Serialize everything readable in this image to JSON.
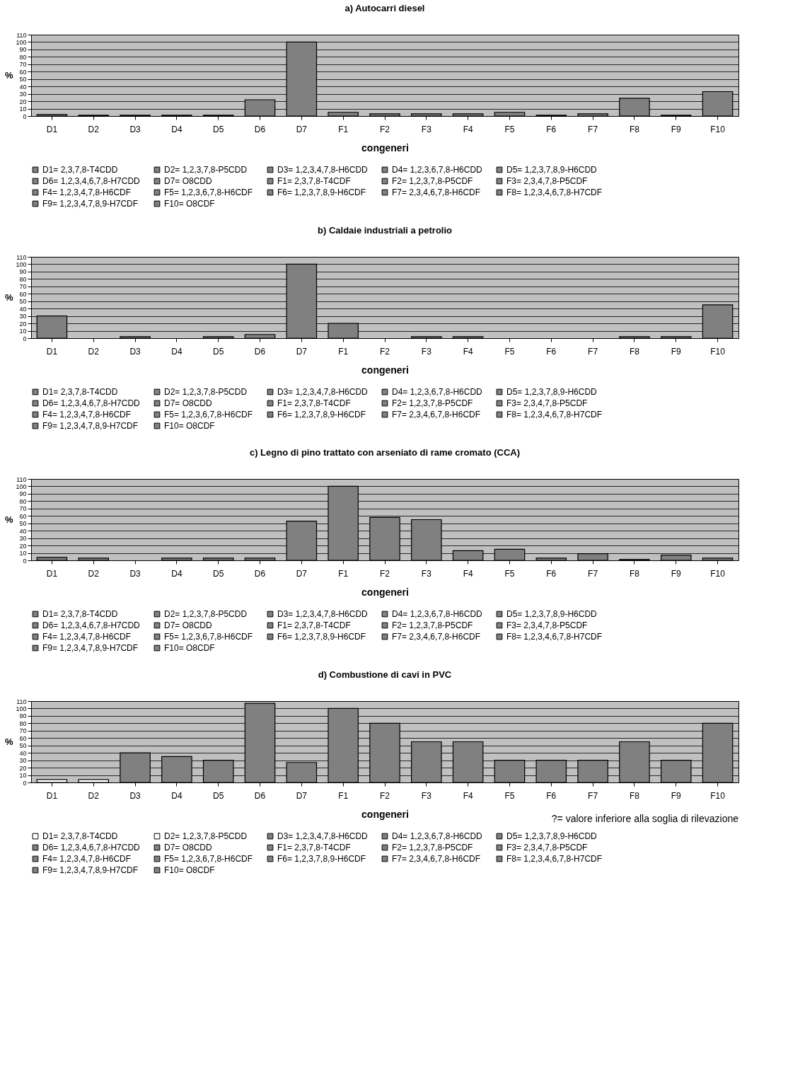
{
  "chart_data": [
    {
      "type": "bar",
      "title": "a) Autocarri diesel",
      "xlabel": "congeneri",
      "ylabel": "%",
      "categories": [
        "D1",
        "D2",
        "D3",
        "D4",
        "D5",
        "D6",
        "D7",
        "F1",
        "F2",
        "F3",
        "F4",
        "F5",
        "F6",
        "F7",
        "F8",
        "F9",
        "F10"
      ],
      "ylim": [
        0,
        110
      ],
      "yticks": [
        0,
        10,
        20,
        30,
        40,
        50,
        60,
        70,
        80,
        90,
        100,
        110
      ],
      "grid": "y",
      "legend": "bottom",
      "series": [
        {
          "name": "D1= 2,3,7,8-T4CDD",
          "color": "#808080",
          "values": [
            2,
            null,
            null,
            null,
            null,
            null,
            null,
            null,
            null,
            null,
            null,
            null,
            null,
            null,
            null,
            null,
            null
          ]
        },
        {
          "name": "D2= 1,2,3,7,8-P5CDD",
          "color": "#808080",
          "values": [
            null,
            1,
            null,
            null,
            null,
            null,
            null,
            null,
            null,
            null,
            null,
            null,
            null,
            null,
            null,
            null,
            null
          ]
        },
        {
          "name": "D3= 1,2,3,4,7,8-H6CDD",
          "color": "#808080",
          "values": [
            null,
            null,
            1,
            null,
            null,
            null,
            null,
            null,
            null,
            null,
            null,
            null,
            null,
            null,
            null,
            null,
            null
          ]
        },
        {
          "name": "D4= 1,2,3,6,7,8-H6CDD",
          "color": "#808080",
          "values": [
            null,
            null,
            null,
            1,
            null,
            null,
            null,
            null,
            null,
            null,
            null,
            null,
            null,
            null,
            null,
            null,
            null
          ]
        },
        {
          "name": "D5= 1,2,3,7,8,9-H6CDD",
          "color": "#808080",
          "values": [
            null,
            null,
            null,
            null,
            1,
            null,
            null,
            null,
            null,
            null,
            null,
            null,
            null,
            null,
            null,
            null,
            null
          ]
        },
        {
          "name": "D6= 1,2,3,4,6,7,8-H7CDD",
          "color": "#808080",
          "values": [
            null,
            null,
            null,
            null,
            null,
            22,
            null,
            null,
            null,
            null,
            null,
            null,
            null,
            null,
            null,
            null,
            null
          ]
        },
        {
          "name": "D7= O8CDD",
          "color": "#808080",
          "values": [
            null,
            null,
            null,
            null,
            null,
            null,
            100,
            null,
            null,
            null,
            null,
            null,
            null,
            null,
            null,
            null,
            null
          ]
        },
        {
          "name": "F1= 2,3,7,8-T4CDF",
          "color": "#808080",
          "values": [
            null,
            null,
            null,
            null,
            null,
            null,
            null,
            5,
            null,
            null,
            null,
            null,
            null,
            null,
            null,
            null,
            null
          ]
        },
        {
          "name": "F2= 1,2,3,7,8-P5CDF",
          "color": "#808080",
          "values": [
            null,
            null,
            null,
            null,
            null,
            null,
            null,
            null,
            3,
            null,
            null,
            null,
            null,
            null,
            null,
            null,
            null
          ]
        },
        {
          "name": "F3= 2,3,4,7,8-P5CDF",
          "color": "#808080",
          "values": [
            null,
            null,
            null,
            null,
            null,
            null,
            null,
            null,
            null,
            3,
            null,
            null,
            null,
            null,
            null,
            null,
            null
          ]
        },
        {
          "name": "F4= 1,2,3,4,7,8-H6CDF",
          "color": "#808080",
          "values": [
            null,
            null,
            null,
            null,
            null,
            null,
            null,
            null,
            null,
            null,
            3,
            null,
            null,
            null,
            null,
            null,
            null
          ]
        },
        {
          "name": "F5= 1,2,3,6,7,8-H6CDF",
          "color": "#808080",
          "values": [
            null,
            null,
            null,
            null,
            null,
            null,
            null,
            null,
            null,
            null,
            null,
            5,
            null,
            null,
            null,
            null,
            null
          ]
        },
        {
          "name": "F6= 1,2,3,7,8,9-H6CDF",
          "color": "#808080",
          "values": [
            null,
            null,
            null,
            null,
            null,
            null,
            null,
            null,
            null,
            null,
            null,
            null,
            1,
            null,
            null,
            null,
            null
          ]
        },
        {
          "name": "F7= 2,3,4,6,7,8-H6CDF",
          "color": "#808080",
          "values": [
            null,
            null,
            null,
            null,
            null,
            null,
            null,
            null,
            null,
            null,
            null,
            null,
            null,
            3,
            null,
            null,
            null
          ]
        },
        {
          "name": "F8= 1,2,3,4,6,7,8-H7CDF",
          "color": "#808080",
          "values": [
            null,
            null,
            null,
            null,
            null,
            null,
            null,
            null,
            null,
            null,
            null,
            null,
            null,
            null,
            24,
            null,
            null
          ]
        },
        {
          "name": "F9= 1,2,3,4,7,8,9-H7CDF",
          "color": "#808080",
          "values": [
            null,
            null,
            null,
            null,
            null,
            null,
            null,
            null,
            null,
            null,
            null,
            null,
            null,
            null,
            null,
            1,
            null
          ]
        },
        {
          "name": "F10= O8CDF",
          "color": "#808080",
          "values": [
            null,
            null,
            null,
            null,
            null,
            null,
            null,
            null,
            null,
            null,
            null,
            null,
            null,
            null,
            null,
            null,
            33
          ]
        }
      ]
    },
    {
      "type": "bar",
      "title": "b) Caldaie industriali a petrolio",
      "xlabel": "congeneri",
      "ylabel": "%",
      "categories": [
        "D1",
        "D2",
        "D3",
        "D4",
        "D5",
        "D6",
        "D7",
        "F1",
        "F2",
        "F3",
        "F4",
        "F5",
        "F6",
        "F7",
        "F8",
        "F9",
        "F10"
      ],
      "ylim": [
        0,
        110
      ],
      "yticks": [
        0,
        10,
        20,
        30,
        40,
        50,
        60,
        70,
        80,
        90,
        100,
        110
      ],
      "grid": "y",
      "legend": "bottom",
      "series": [
        {
          "name": "D1= 2,3,7,8-T4CDD",
          "color": "#808080",
          "values": [
            30,
            null,
            null,
            null,
            null,
            null,
            null,
            null,
            null,
            null,
            null,
            null,
            null,
            null,
            null,
            null,
            null
          ]
        },
        {
          "name": "D2= 1,2,3,7,8-P5CDD",
          "color": "#808080",
          "values": [
            null,
            null,
            null,
            null,
            null,
            null,
            null,
            null,
            null,
            null,
            null,
            null,
            null,
            null,
            null,
            null,
            null
          ]
        },
        {
          "name": "D3= 1,2,3,4,7,8-H6CDD",
          "color": "#808080",
          "values": [
            null,
            null,
            2,
            null,
            null,
            null,
            null,
            null,
            null,
            null,
            null,
            null,
            null,
            null,
            null,
            null,
            null
          ]
        },
        {
          "name": "D4= 1,2,3,6,7,8-H6CDD",
          "color": "#808080",
          "values": [
            null,
            null,
            null,
            null,
            null,
            null,
            null,
            null,
            null,
            null,
            null,
            null,
            null,
            null,
            null,
            null,
            null
          ]
        },
        {
          "name": "D5= 1,2,3,7,8,9-H6CDD",
          "color": "#808080",
          "values": [
            null,
            null,
            null,
            null,
            2,
            null,
            null,
            null,
            null,
            null,
            null,
            null,
            null,
            null,
            null,
            null,
            null
          ]
        },
        {
          "name": "D6= 1,2,3,4,6,7,8-H7CDD",
          "color": "#808080",
          "values": [
            null,
            null,
            null,
            null,
            null,
            5,
            null,
            null,
            null,
            null,
            null,
            null,
            null,
            null,
            null,
            null,
            null
          ]
        },
        {
          "name": "D7= O8CDD",
          "color": "#808080",
          "values": [
            null,
            null,
            null,
            null,
            null,
            null,
            100,
            null,
            null,
            null,
            null,
            null,
            null,
            null,
            null,
            null,
            null
          ]
        },
        {
          "name": "F1= 2,3,7,8-T4CDF",
          "color": "#808080",
          "values": [
            null,
            null,
            null,
            null,
            null,
            null,
            null,
            20,
            null,
            null,
            null,
            null,
            null,
            null,
            null,
            null,
            null
          ]
        },
        {
          "name": "F2= 1,2,3,7,8-P5CDF",
          "color": "#808080",
          "values": [
            null,
            null,
            null,
            null,
            null,
            null,
            null,
            null,
            null,
            null,
            null,
            null,
            null,
            null,
            null,
            null,
            null
          ]
        },
        {
          "name": "F3= 2,3,4,7,8-P5CDF",
          "color": "#808080",
          "values": [
            null,
            null,
            null,
            null,
            null,
            null,
            null,
            null,
            null,
            2,
            null,
            null,
            null,
            null,
            null,
            null,
            null
          ]
        },
        {
          "name": "F4= 1,2,3,4,7,8-H6CDF",
          "color": "#808080",
          "values": [
            null,
            null,
            null,
            null,
            null,
            null,
            null,
            null,
            null,
            null,
            2,
            null,
            null,
            null,
            null,
            null,
            null
          ]
        },
        {
          "name": "F5= 1,2,3,6,7,8-H6CDF",
          "color": "#808080",
          "values": [
            null,
            null,
            null,
            null,
            null,
            null,
            null,
            null,
            null,
            null,
            null,
            null,
            null,
            null,
            null,
            null,
            null
          ]
        },
        {
          "name": "F6= 1,2,3,7,8,9-H6CDF",
          "color": "#808080",
          "values": [
            null,
            null,
            null,
            null,
            null,
            null,
            null,
            null,
            null,
            null,
            null,
            null,
            null,
            null,
            null,
            null,
            null
          ]
        },
        {
          "name": "F7= 2,3,4,6,7,8-H6CDF",
          "color": "#808080",
          "values": [
            null,
            null,
            null,
            null,
            null,
            null,
            null,
            null,
            null,
            null,
            null,
            null,
            null,
            null,
            null,
            null,
            null
          ]
        },
        {
          "name": "F8= 1,2,3,4,6,7,8-H7CDF",
          "color": "#808080",
          "values": [
            null,
            null,
            null,
            null,
            null,
            null,
            null,
            null,
            null,
            null,
            null,
            null,
            null,
            null,
            2,
            null,
            null
          ]
        },
        {
          "name": "F9= 1,2,3,4,7,8,9-H7CDF",
          "color": "#808080",
          "values": [
            null,
            null,
            null,
            null,
            null,
            null,
            null,
            null,
            null,
            null,
            null,
            null,
            null,
            null,
            null,
            2,
            null
          ]
        },
        {
          "name": "F10= O8CDF",
          "color": "#808080",
          "values": [
            null,
            null,
            null,
            null,
            null,
            null,
            null,
            null,
            null,
            null,
            null,
            null,
            null,
            null,
            null,
            null,
            45
          ]
        }
      ]
    },
    {
      "type": "bar",
      "title": "c) Legno di pino trattato con arseniato di rame cromato (CCA)",
      "xlabel": "congeneri",
      "ylabel": "%",
      "categories": [
        "D1",
        "D2",
        "D3",
        "D4",
        "D5",
        "D6",
        "D7",
        "F1",
        "F2",
        "F3",
        "F4",
        "F5",
        "F6",
        "F7",
        "F8",
        "F9",
        "F10"
      ],
      "ylim": [
        0,
        110
      ],
      "yticks": [
        0,
        10,
        20,
        30,
        40,
        50,
        60,
        70,
        80,
        90,
        100,
        110
      ],
      "grid": "y",
      "legend": "bottom",
      "series": [
        {
          "name": "D1= 2,3,7,8-T4CDD",
          "color": "#808080",
          "values": [
            4,
            null,
            null,
            null,
            null,
            null,
            null,
            null,
            null,
            null,
            null,
            null,
            null,
            null,
            null,
            null,
            null
          ]
        },
        {
          "name": "D2= 1,2,3,7,8-P5CDD",
          "color": "#808080",
          "values": [
            null,
            3,
            null,
            null,
            null,
            null,
            null,
            null,
            null,
            null,
            null,
            null,
            null,
            null,
            null,
            null,
            null
          ]
        },
        {
          "name": "D3= 1,2,3,4,7,8-H6CDD",
          "color": "#808080",
          "values": [
            null,
            null,
            null,
            null,
            null,
            null,
            null,
            null,
            null,
            null,
            null,
            null,
            null,
            null,
            null,
            null,
            null
          ]
        },
        {
          "name": "D4= 1,2,3,6,7,8-H6CDD",
          "color": "#808080",
          "values": [
            null,
            null,
            null,
            3,
            null,
            null,
            null,
            null,
            null,
            null,
            null,
            null,
            null,
            null,
            null,
            null,
            null
          ]
        },
        {
          "name": "D5= 1,2,3,7,8,9-H6CDD",
          "color": "#808080",
          "values": [
            null,
            null,
            null,
            null,
            3,
            null,
            null,
            null,
            null,
            null,
            null,
            null,
            null,
            null,
            null,
            null,
            null
          ]
        },
        {
          "name": "D6= 1,2,3,4,6,7,8-H7CDD",
          "color": "#808080",
          "values": [
            null,
            null,
            null,
            null,
            null,
            3,
            null,
            null,
            null,
            null,
            null,
            null,
            null,
            null,
            null,
            null,
            null
          ]
        },
        {
          "name": "D7= O8CDD",
          "color": "#808080",
          "values": [
            null,
            null,
            null,
            null,
            null,
            null,
            53,
            null,
            null,
            null,
            null,
            null,
            null,
            null,
            null,
            null,
            null
          ]
        },
        {
          "name": "F1= 2,3,7,8-T4CDF",
          "color": "#808080",
          "values": [
            null,
            null,
            null,
            null,
            null,
            null,
            null,
            100,
            null,
            null,
            null,
            null,
            null,
            null,
            null,
            null,
            null
          ]
        },
        {
          "name": "F2= 1,2,3,7,8-P5CDF",
          "color": "#808080",
          "values": [
            null,
            null,
            null,
            null,
            null,
            null,
            null,
            null,
            58,
            null,
            null,
            null,
            null,
            null,
            null,
            null,
            null
          ]
        },
        {
          "name": "F3= 2,3,4,7,8-P5CDF",
          "color": "#808080",
          "values": [
            null,
            null,
            null,
            null,
            null,
            null,
            null,
            null,
            null,
            55,
            null,
            null,
            null,
            null,
            null,
            null,
            null
          ]
        },
        {
          "name": "F4= 1,2,3,4,7,8-H6CDF",
          "color": "#808080",
          "values": [
            null,
            null,
            null,
            null,
            null,
            null,
            null,
            null,
            null,
            null,
            13,
            null,
            null,
            null,
            null,
            null,
            null
          ]
        },
        {
          "name": "F5= 1,2,3,6,7,8-H6CDF",
          "color": "#808080",
          "values": [
            null,
            null,
            null,
            null,
            null,
            null,
            null,
            null,
            null,
            null,
            null,
            15,
            null,
            null,
            null,
            null,
            null
          ]
        },
        {
          "name": "F6= 1,2,3,7,8,9-H6CDF",
          "color": "#808080",
          "values": [
            null,
            null,
            null,
            null,
            null,
            null,
            null,
            null,
            null,
            null,
            null,
            null,
            3,
            null,
            null,
            null,
            null
          ]
        },
        {
          "name": "F7= 2,3,4,6,7,8-H6CDF",
          "color": "#808080",
          "values": [
            null,
            null,
            null,
            null,
            null,
            null,
            null,
            null,
            null,
            null,
            null,
            null,
            null,
            9,
            null,
            null,
            null
          ]
        },
        {
          "name": "F8= 1,2,3,4,6,7,8-H7CDF",
          "color": "#808080",
          "values": [
            null,
            null,
            null,
            null,
            null,
            null,
            null,
            null,
            null,
            null,
            null,
            null,
            null,
            null,
            1,
            null,
            null
          ]
        },
        {
          "name": "F9= 1,2,3,4,7,8,9-H7CDF",
          "color": "#808080",
          "values": [
            null,
            null,
            null,
            null,
            null,
            null,
            null,
            null,
            null,
            null,
            null,
            null,
            null,
            null,
            null,
            7,
            null
          ]
        },
        {
          "name": "F10= O8CDF",
          "color": "#808080",
          "values": [
            null,
            null,
            null,
            null,
            null,
            null,
            null,
            null,
            null,
            null,
            null,
            null,
            null,
            null,
            null,
            null,
            3
          ]
        }
      ]
    },
    {
      "type": "bar",
      "title": "d) Combustione di cavi in PVC",
      "xlabel": "congeneri",
      "ylabel": "%",
      "categories": [
        "D1",
        "D2",
        "D3",
        "D4",
        "D5",
        "D6",
        "D7",
        "F1",
        "F2",
        "F3",
        "F4",
        "F5",
        "F6",
        "F7",
        "F8",
        "F9",
        "F10"
      ],
      "ylim": [
        0,
        110
      ],
      "yticks": [
        0,
        10,
        20,
        30,
        40,
        50,
        60,
        70,
        80,
        90,
        100,
        110
      ],
      "grid": "y",
      "legend": "bottom",
      "annotations": [
        "?= valore inferiore alla soglia di rilevazione"
      ],
      "series": [
        {
          "name": "D1= 2,3,7,8-T4CDD",
          "color": "#ffffff",
          "values": [
            4,
            null,
            null,
            null,
            null,
            null,
            null,
            null,
            null,
            null,
            null,
            null,
            null,
            null,
            null,
            null,
            null
          ]
        },
        {
          "name": "D2= 1,2,3,7,8-P5CDD",
          "color": "#ffffff",
          "values": [
            null,
            4,
            null,
            null,
            null,
            null,
            null,
            null,
            null,
            null,
            null,
            null,
            null,
            null,
            null,
            null,
            null
          ]
        },
        {
          "name": "D3= 1,2,3,4,7,8-H6CDD",
          "color": "#808080",
          "values": [
            null,
            null,
            40,
            null,
            null,
            null,
            null,
            null,
            null,
            null,
            null,
            null,
            null,
            null,
            null,
            null,
            null
          ]
        },
        {
          "name": "D4= 1,2,3,6,7,8-H6CDD",
          "color": "#808080",
          "values": [
            null,
            null,
            null,
            35,
            null,
            null,
            null,
            null,
            null,
            null,
            null,
            null,
            null,
            null,
            null,
            null,
            null
          ]
        },
        {
          "name": "D5= 1,2,3,7,8,9-H6CDD",
          "color": "#808080",
          "values": [
            null,
            null,
            null,
            null,
            30,
            null,
            null,
            null,
            null,
            null,
            null,
            null,
            null,
            null,
            null,
            null,
            null
          ]
        },
        {
          "name": "D6= 1,2,3,4,6,7,8-H7CDD",
          "color": "#808080",
          "values": [
            null,
            null,
            null,
            null,
            null,
            107,
            null,
            null,
            null,
            null,
            null,
            null,
            null,
            null,
            null,
            null,
            null
          ]
        },
        {
          "name": "D7= O8CDD",
          "color": "#808080",
          "values": [
            null,
            null,
            null,
            null,
            null,
            null,
            27,
            null,
            null,
            null,
            null,
            null,
            null,
            null,
            null,
            null,
            null
          ]
        },
        {
          "name": "F1= 2,3,7,8-T4CDF",
          "color": "#808080",
          "values": [
            null,
            null,
            null,
            null,
            null,
            null,
            null,
            100,
            null,
            null,
            null,
            null,
            null,
            null,
            null,
            null,
            null
          ]
        },
        {
          "name": "F2= 1,2,3,7,8-P5CDF",
          "color": "#808080",
          "values": [
            null,
            null,
            null,
            null,
            null,
            null,
            null,
            null,
            80,
            null,
            null,
            null,
            null,
            null,
            null,
            null,
            null
          ]
        },
        {
          "name": "F3= 2,3,4,7,8-P5CDF",
          "color": "#808080",
          "values": [
            null,
            null,
            null,
            null,
            null,
            null,
            null,
            null,
            null,
            55,
            null,
            null,
            null,
            null,
            null,
            null,
            null
          ]
        },
        {
          "name": "F4= 1,2,3,4,7,8-H6CDF",
          "color": "#808080",
          "values": [
            null,
            null,
            null,
            null,
            null,
            null,
            null,
            null,
            null,
            null,
            55,
            null,
            null,
            null,
            null,
            null,
            null
          ]
        },
        {
          "name": "F5= 1,2,3,6,7,8-H6CDF",
          "color": "#808080",
          "values": [
            null,
            null,
            null,
            null,
            null,
            null,
            null,
            null,
            null,
            null,
            null,
            30,
            null,
            null,
            null,
            null,
            null
          ]
        },
        {
          "name": "F6= 1,2,3,7,8,9-H6CDF",
          "color": "#808080",
          "values": [
            null,
            null,
            null,
            null,
            null,
            null,
            null,
            null,
            null,
            null,
            null,
            null,
            30,
            null,
            null,
            null,
            null
          ]
        },
        {
          "name": "F7= 2,3,4,6,7,8-H6CDF",
          "color": "#808080",
          "values": [
            null,
            null,
            null,
            null,
            null,
            null,
            null,
            null,
            null,
            null,
            null,
            null,
            null,
            30,
            null,
            null,
            null
          ]
        },
        {
          "name": "F8= 1,2,3,4,6,7,8-H7CDF",
          "color": "#808080",
          "values": [
            null,
            null,
            null,
            null,
            null,
            null,
            null,
            null,
            null,
            null,
            null,
            null,
            null,
            null,
            55,
            null,
            null
          ]
        },
        {
          "name": "F9= 1,2,3,4,7,8,9-H7CDF",
          "color": "#808080",
          "values": [
            null,
            null,
            null,
            null,
            null,
            null,
            null,
            null,
            null,
            null,
            null,
            null,
            null,
            null,
            null,
            30,
            null
          ]
        },
        {
          "name": "F10= O8CDF",
          "color": "#808080",
          "values": [
            null,
            null,
            null,
            null,
            null,
            null,
            null,
            null,
            null,
            null,
            null,
            null,
            null,
            null,
            null,
            null,
            80
          ]
        }
      ]
    }
  ]
}
